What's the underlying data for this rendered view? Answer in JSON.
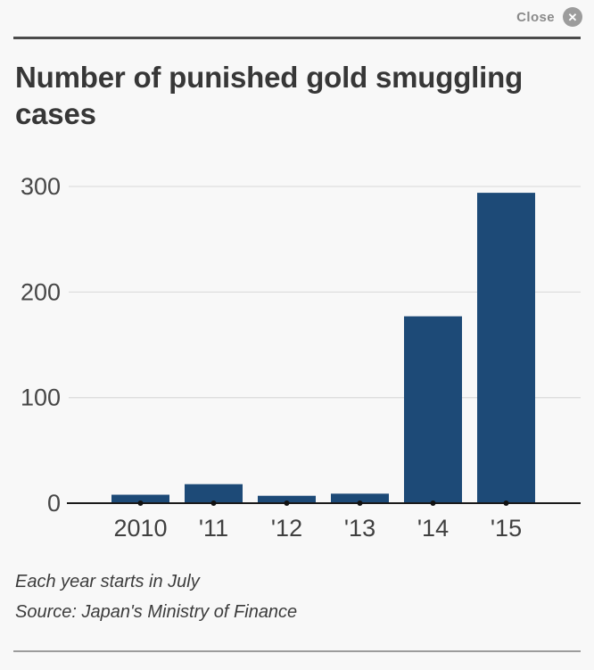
{
  "modal": {
    "close_label": "Close",
    "close_icon_glyph": "✕"
  },
  "chart_data": {
    "type": "bar",
    "title": "Number of punished gold smuggling cases",
    "categories": [
      "2010",
      "'11",
      "'12",
      "'13",
      "'14",
      "'15"
    ],
    "values": [
      8,
      18,
      7,
      9,
      177,
      294
    ],
    "xlabel": "",
    "ylabel": "",
    "yticks": [
      0,
      100,
      200,
      300
    ],
    "ylim": [
      0,
      316
    ],
    "grid": true,
    "legend": false,
    "bar_color": "#1d4a77",
    "axis_color": "#1a1a1a",
    "grid_color": "#dedede",
    "tick_label_color": "#474747",
    "baseline_dot_color": "#111111",
    "notes": "black dot marker on baseline at each category"
  },
  "footer": {
    "note": "Each year starts in July",
    "source": "Source: Japan's Ministry of Finance"
  }
}
